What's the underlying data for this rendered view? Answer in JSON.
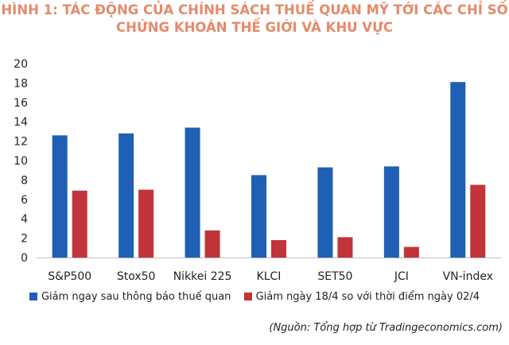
{
  "chart_data": {
    "type": "bar",
    "title_lines": [
      "HÌNH 1: TÁC ĐỘNG CỦA CHÍNH SÁCH THUẾ QUAN MỸ TỚI CÁC CHỈ SỐ",
      "CHỨNG KHOÁN THẾ GIỚI VÀ KHU VỰC"
    ],
    "categories": [
      "S&P500",
      "Stox50",
      "Nikkei 225",
      "KLCI",
      "SET50",
      "JCI",
      "VN-index"
    ],
    "series": [
      {
        "name": "Giảm ngay sau thông báo thuế quan",
        "color": "#1f5fb4",
        "values": [
          12.6,
          12.8,
          13.4,
          8.5,
          9.3,
          9.4,
          18.1
        ]
      },
      {
        "name": "Giảm ngày 18/4 so với thời điểm ngày 02/4",
        "color": "#c0343a",
        "values": [
          6.9,
          7.0,
          2.8,
          1.8,
          2.1,
          1.1,
          7.5
        ]
      }
    ],
    "ylim": [
      0,
      20
    ],
    "yticks": [
      0,
      2,
      4,
      6,
      8,
      10,
      12,
      14,
      16,
      18,
      20
    ],
    "grid": false,
    "legend_position": "bottom"
  },
  "source_note": "(Nguồn: Tổng hợp từ Tradingeconomics.com)"
}
